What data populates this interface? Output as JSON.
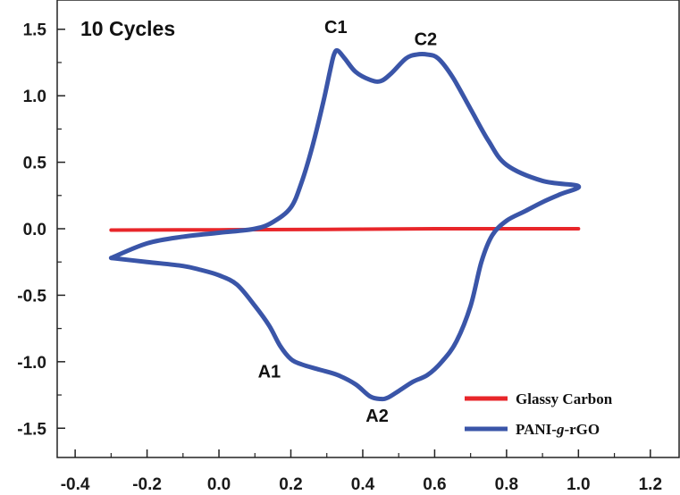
{
  "chart_data": {
    "type": "line",
    "title": "10 Cycles",
    "xlabel": "",
    "ylabel": "",
    "xlim": [
      -0.45,
      1.28
    ],
    "ylim": [
      -1.72,
      1.72
    ],
    "x_ticks": [
      -0.4,
      -0.2,
      0.0,
      0.2,
      0.4,
      0.6,
      0.8,
      1.0,
      1.2
    ],
    "x_tick_labels": [
      "-0.4",
      "-0.2",
      "0.0",
      "0.2",
      "0.4",
      "0.6",
      "0.8",
      "1.0",
      "1.2"
    ],
    "y_ticks": [
      -1.5,
      -1.0,
      -0.5,
      0.0,
      0.5,
      1.0,
      1.5
    ],
    "y_tick_labels": [
      "-1.5",
      "-1.0",
      "-0.5",
      "0.0",
      "0.5",
      "1.0",
      "1.5"
    ],
    "grid": false,
    "legend_position": "bottom-right",
    "series": [
      {
        "name": "Glassy Carbon",
        "color": "#e8262a",
        "x": [
          -0.3,
          0.0,
          0.3,
          0.6,
          1.0
        ],
        "y": [
          -0.01,
          -0.008,
          -0.005,
          0.0,
          0.0
        ]
      },
      {
        "name": "PANI-g-rGO",
        "color": "#3a55a8",
        "x": [
          -0.3,
          -0.2,
          -0.1,
          0.0,
          0.1,
          0.15,
          0.2,
          0.23,
          0.26,
          0.29,
          0.31,
          0.32,
          0.33,
          0.35,
          0.38,
          0.42,
          0.45,
          0.48,
          0.52,
          0.55,
          0.58,
          0.61,
          0.65,
          0.7,
          0.75,
          0.8,
          0.9,
          1.0,
          0.95,
          0.9,
          0.85,
          0.8,
          0.76,
          0.73,
          0.7,
          0.66,
          0.62,
          0.58,
          0.54,
          0.5,
          0.47,
          0.45,
          0.42,
          0.38,
          0.33,
          0.28,
          0.23,
          0.2,
          0.17,
          0.14,
          0.1,
          0.05,
          0.0,
          -0.05,
          -0.1,
          -0.2,
          -0.3
        ],
        "y": [
          -0.22,
          -0.11,
          -0.06,
          -0.03,
          0.0,
          0.05,
          0.16,
          0.35,
          0.62,
          0.95,
          1.2,
          1.31,
          1.34,
          1.28,
          1.18,
          1.12,
          1.11,
          1.17,
          1.28,
          1.31,
          1.31,
          1.28,
          1.14,
          0.9,
          0.66,
          0.48,
          0.36,
          0.32,
          0.26,
          0.2,
          0.13,
          0.06,
          -0.05,
          -0.25,
          -0.58,
          -0.85,
          -1.0,
          -1.1,
          -1.15,
          -1.22,
          -1.27,
          -1.28,
          -1.26,
          -1.17,
          -1.1,
          -1.06,
          -1.02,
          -0.98,
          -0.88,
          -0.73,
          -0.58,
          -0.42,
          -0.35,
          -0.31,
          -0.28,
          -0.25,
          -0.22
        ]
      }
    ],
    "annotations": [
      {
        "text": "C1",
        "x": 0.325,
        "y": 1.47
      },
      {
        "text": "C2",
        "x": 0.575,
        "y": 1.38
      },
      {
        "text": "A1",
        "x": 0.14,
        "y": -1.12
      },
      {
        "text": "A2",
        "x": 0.44,
        "y": -1.45
      }
    ]
  }
}
